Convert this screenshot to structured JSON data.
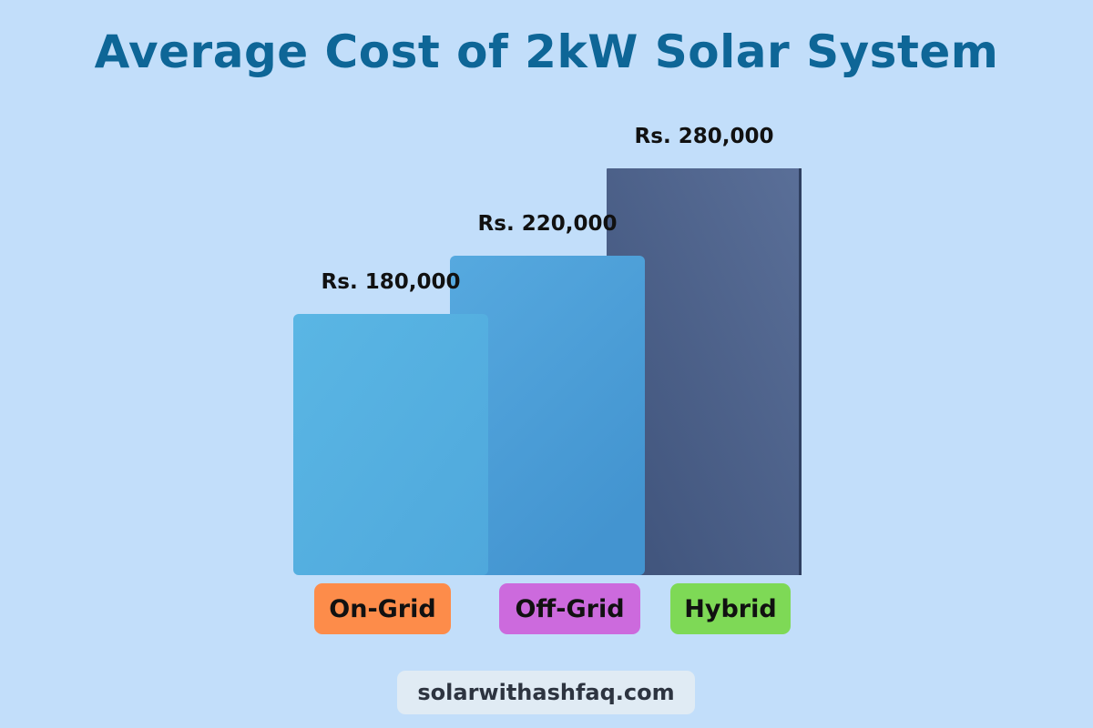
{
  "colors": {
    "background": "#c2defa",
    "title": "#0e6697",
    "bar_on_grid": "#55b1e2",
    "bar_off_grid": "#4d9ed8",
    "bar_hybrid": "#4a5f8b",
    "badge_on_grid": "#fd8c4a",
    "badge_off_grid": "#cc6add",
    "badge_hybrid": "#7ed956",
    "footer_badge": "#e0ebf4"
  },
  "chart_data": {
    "type": "bar",
    "title": "Average Cost of 2kW Solar System",
    "categories": [
      "On-Grid",
      "Off-Grid",
      "Hybrid"
    ],
    "values": [
      180000,
      220000,
      280000
    ],
    "data_labels": [
      "Rs. 180,000",
      "Rs. 220,000",
      "Rs. 280,000"
    ],
    "unit": "Rs.",
    "xlabel": "",
    "ylabel": "",
    "grid": false,
    "legend": "none"
  },
  "footer": {
    "website": "solarwithashfaq.com"
  }
}
